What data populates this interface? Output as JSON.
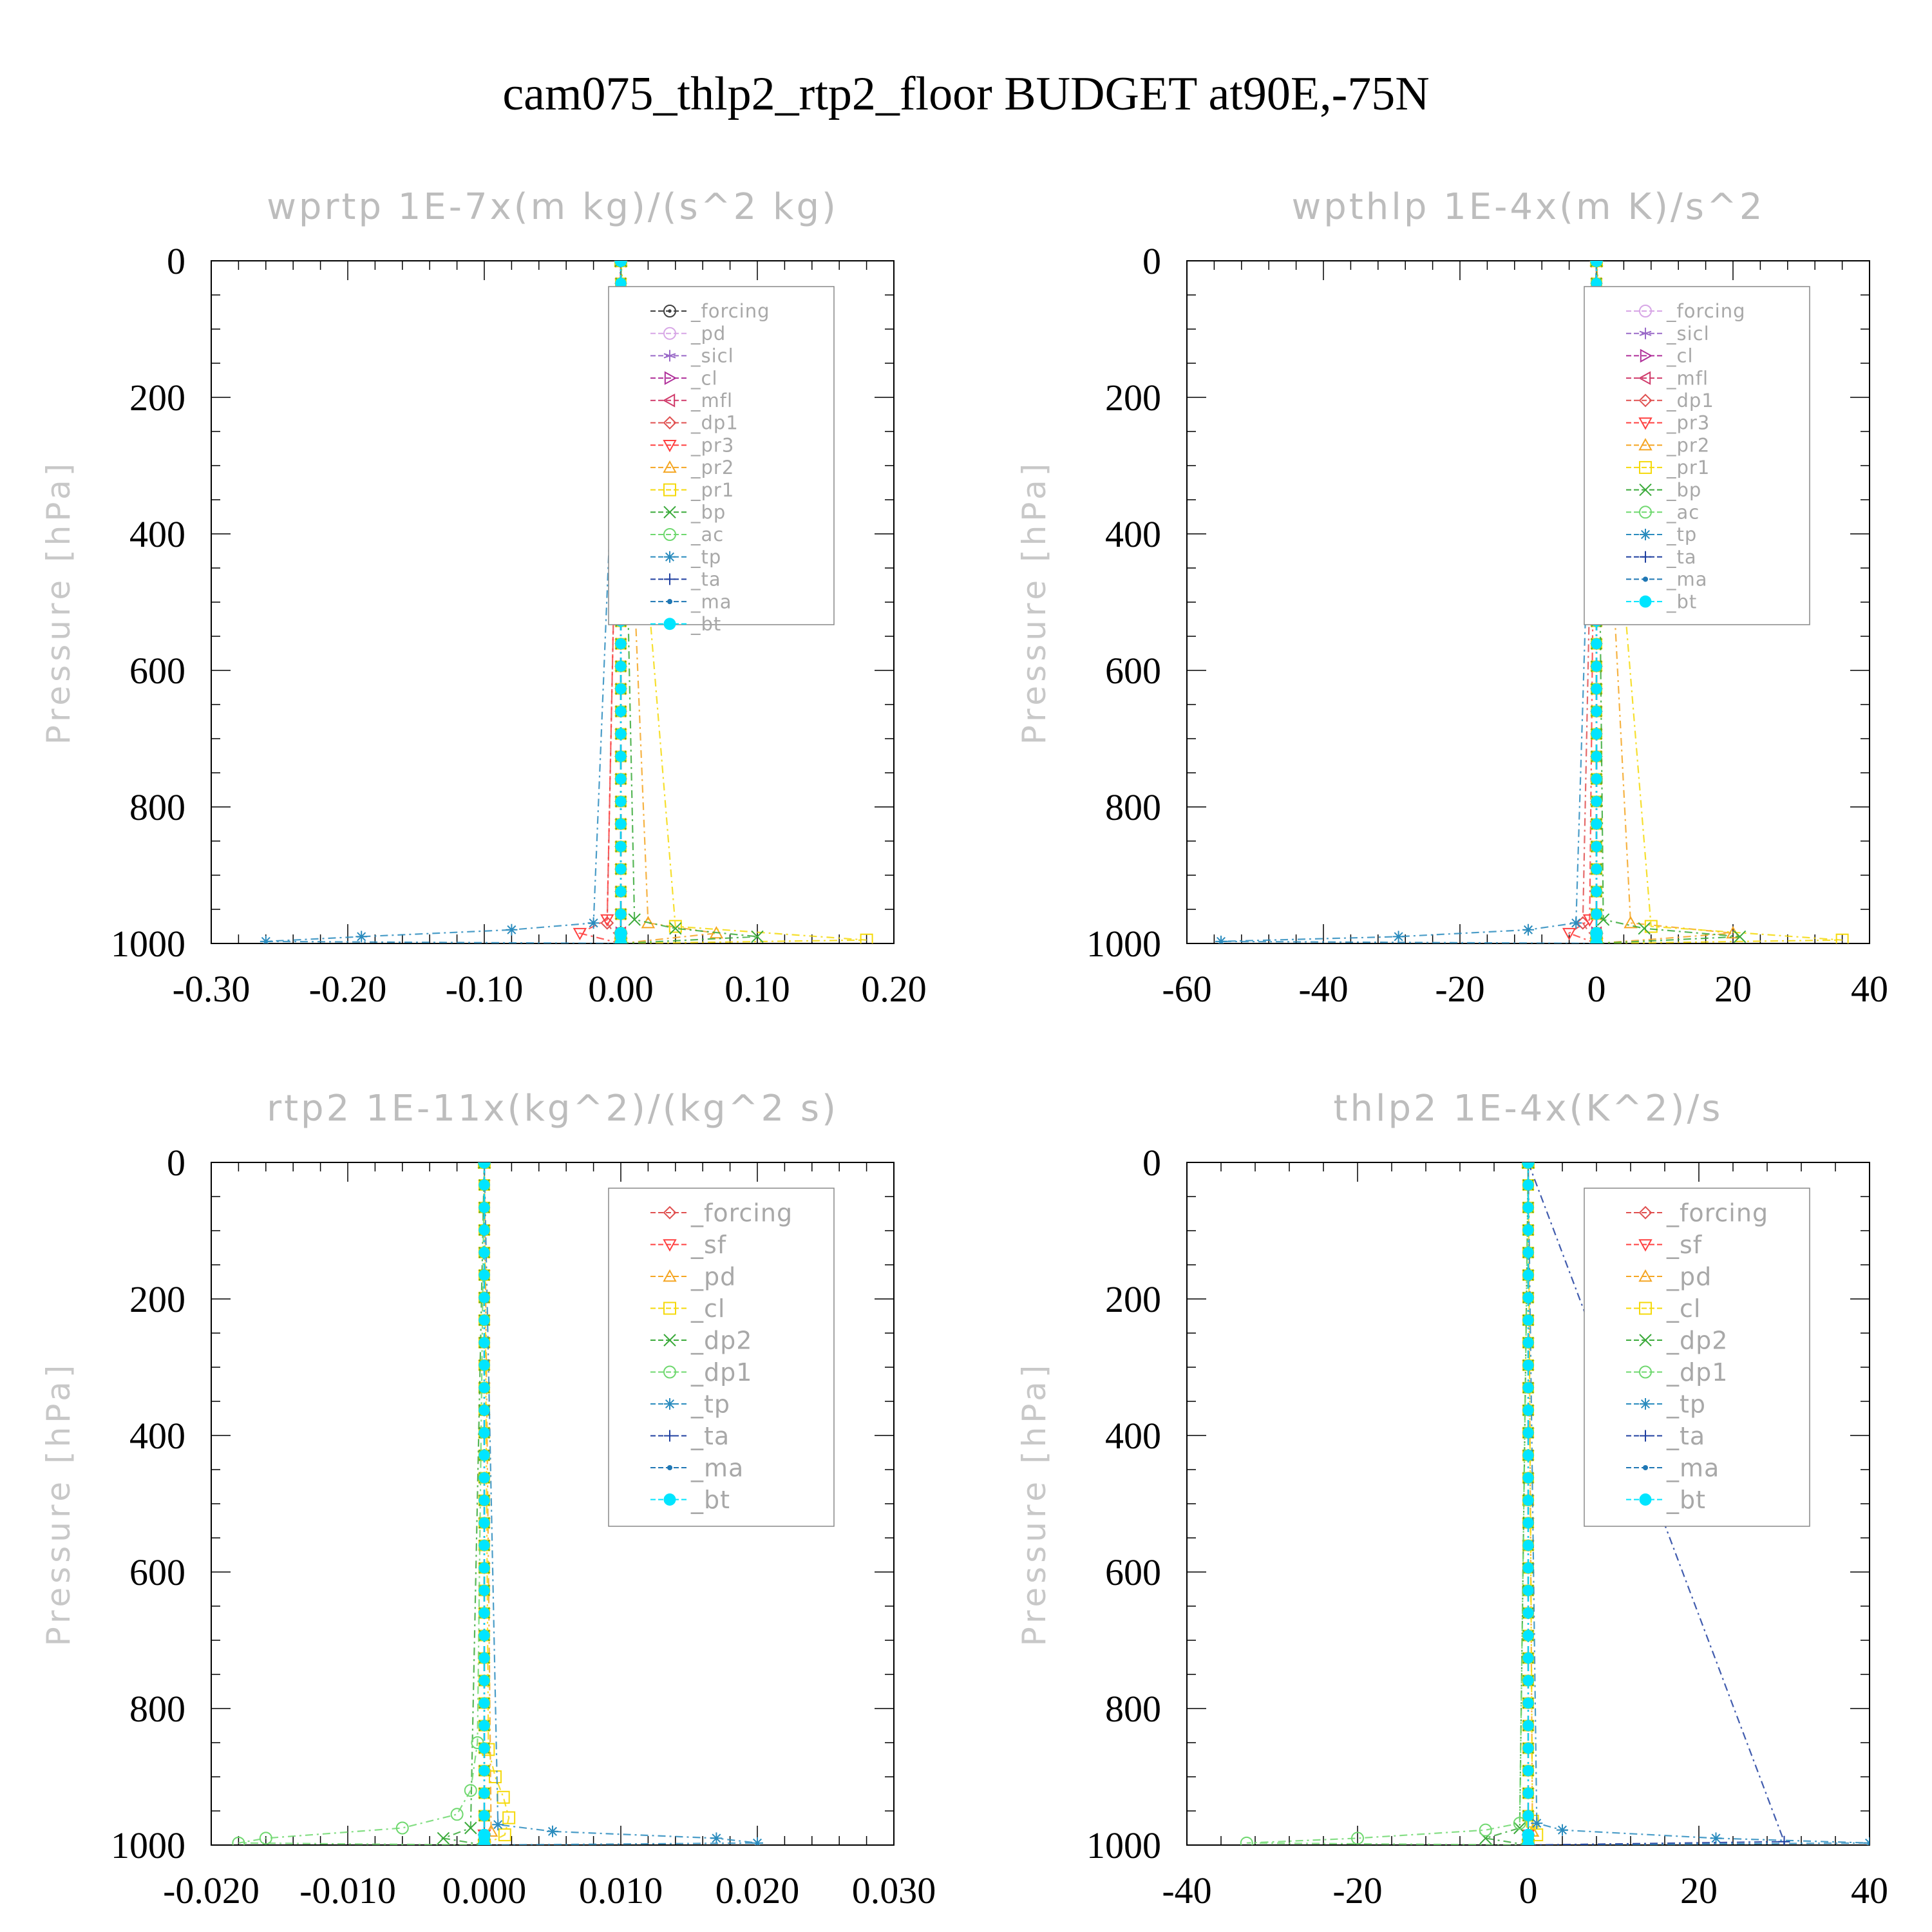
{
  "figure": {
    "title": "cam075_thlp2_rtp2_floor  BUDGET at90E,-75N"
  },
  "chart_data": [
    {
      "type": "line",
      "title": "wprtp  1E-7x(m kg)/(s^2 kg)",
      "ylabel": "Pressure [hPa]",
      "xlim": [
        -0.3,
        0.2
      ],
      "ylim": [
        1000,
        0
      ],
      "y_reversed": true,
      "xticks": [
        "-0.30",
        "-0.20",
        "-0.10",
        "0.00",
        "0.10",
        "0.20"
      ],
      "yticks": [
        "0",
        "200",
        "400",
        "600",
        "800",
        "1000"
      ],
      "legend_position": "top-right",
      "series": [
        {
          "name": "_forcing",
          "color": "#404040",
          "marker": "circle-dot",
          "x": [
            0,
            0,
            0
          ],
          "y": [
            1000,
            985,
            0
          ]
        },
        {
          "name": "_pd",
          "color": "#d7a6e6",
          "marker": "circle",
          "x": [
            0,
            0,
            0
          ],
          "y": [
            1000,
            985,
            0
          ]
        },
        {
          "name": "_sicl",
          "color": "#9a6ac8",
          "marker": "star",
          "x": [
            0,
            0,
            0
          ],
          "y": [
            1000,
            985,
            0
          ]
        },
        {
          "name": "_cl",
          "color": "#b0309a",
          "marker": "triangle-right",
          "x": [
            0,
            0,
            0
          ],
          "y": [
            1000,
            985,
            0
          ]
        },
        {
          "name": "_mfl",
          "color": "#d03a6a",
          "marker": "triangle-left",
          "x": [
            0,
            0,
            0
          ],
          "y": [
            1000,
            985,
            0
          ]
        },
        {
          "name": "_dp1",
          "color": "#e05050",
          "marker": "diamond",
          "x": [
            0,
            -0.01,
            0
          ],
          "y": [
            1000,
            970,
            0
          ]
        },
        {
          "name": "_pr3",
          "color": "#ff4040",
          "marker": "triangle-down",
          "x": [
            0,
            -0.03,
            -0.01,
            0
          ],
          "y": [
            1000,
            985,
            965,
            0
          ]
        },
        {
          "name": "_pr2",
          "color": "#f5a623",
          "marker": "triangle-up",
          "x": [
            0,
            0.07,
            0.02,
            0
          ],
          "y": [
            1000,
            985,
            970,
            0
          ]
        },
        {
          "name": "_pr1",
          "color": "#f5d90a",
          "marker": "square",
          "x": [
            0,
            0.18,
            0.04,
            0
          ],
          "y": [
            1000,
            995,
            975,
            0
          ]
        },
        {
          "name": "_bp",
          "color": "#3aaa3a",
          "marker": "x",
          "x": [
            0,
            0.1,
            0.04,
            0.01,
            0
          ],
          "y": [
            1000,
            990,
            978,
            965,
            0
          ]
        },
        {
          "name": "_ac",
          "color": "#6fd86f",
          "marker": "circle",
          "x": [
            0,
            0,
            0
          ],
          "y": [
            1000,
            985,
            0
          ]
        },
        {
          "name": "_tp",
          "color": "#2b8cbe",
          "marker": "asterisk",
          "x": [
            0,
            -0.26,
            -0.19,
            -0.08,
            -0.02,
            0
          ],
          "y": [
            1000,
            997,
            990,
            980,
            970,
            0
          ]
        },
        {
          "name": "_ta",
          "color": "#2040a0",
          "marker": "plus",
          "x": [
            0,
            0,
            0
          ],
          "y": [
            1000,
            985,
            0
          ]
        },
        {
          "name": "_ma",
          "color": "#1f77b4",
          "marker": "dot",
          "x": [
            0,
            0,
            0
          ],
          "y": [
            1000,
            985,
            0
          ]
        },
        {
          "name": "_bt",
          "color": "#00e5ff",
          "marker": "filled-circle",
          "x": [
            0,
            0,
            0
          ],
          "y": [
            1000,
            985,
            0
          ]
        }
      ]
    },
    {
      "type": "line",
      "title": "wpthlp  1E-4x(m K)/s^2",
      "ylabel": "Pressure [hPa]",
      "xlim": [
        -60,
        40
      ],
      "ylim": [
        1000,
        0
      ],
      "y_reversed": true,
      "xticks": [
        "-60",
        "-40",
        "-20",
        "0",
        "20",
        "40"
      ],
      "yticks": [
        "0",
        "200",
        "400",
        "600",
        "800",
        "1000"
      ],
      "legend_position": "top-right",
      "series": [
        {
          "name": "_forcing",
          "color": "#d7a6e6",
          "marker": "circle",
          "x": [
            0,
            0,
            0
          ],
          "y": [
            1000,
            985,
            0
          ]
        },
        {
          "name": "_sicl",
          "color": "#9a6ac8",
          "marker": "star",
          "x": [
            0,
            0,
            0
          ],
          "y": [
            1000,
            985,
            0
          ]
        },
        {
          "name": "_cl",
          "color": "#b0309a",
          "marker": "triangle-right",
          "x": [
            0,
            0,
            0
          ],
          "y": [
            1000,
            985,
            0
          ]
        },
        {
          "name": "_mfl",
          "color": "#d03a6a",
          "marker": "triangle-left",
          "x": [
            0,
            0,
            0
          ],
          "y": [
            1000,
            985,
            0
          ]
        },
        {
          "name": "_dp1",
          "color": "#e05050",
          "marker": "diamond",
          "x": [
            0,
            -2,
            0
          ],
          "y": [
            1000,
            970,
            0
          ]
        },
        {
          "name": "_pr3",
          "color": "#ff4040",
          "marker": "triangle-down",
          "x": [
            0,
            -4,
            -1,
            0
          ],
          "y": [
            1000,
            985,
            965,
            0
          ]
        },
        {
          "name": "_pr2",
          "color": "#f5a623",
          "marker": "triangle-up",
          "x": [
            0,
            20,
            5,
            0
          ],
          "y": [
            1000,
            985,
            970,
            0
          ]
        },
        {
          "name": "_pr1",
          "color": "#f5d90a",
          "marker": "square",
          "x": [
            0,
            36,
            8,
            0
          ],
          "y": [
            1000,
            995,
            975,
            0
          ]
        },
        {
          "name": "_bp",
          "color": "#3aaa3a",
          "marker": "x",
          "x": [
            0,
            21,
            7,
            1,
            0
          ],
          "y": [
            1000,
            990,
            978,
            965,
            0
          ]
        },
        {
          "name": "_ac",
          "color": "#6fd86f",
          "marker": "circle",
          "x": [
            0,
            0,
            0
          ],
          "y": [
            1000,
            985,
            0
          ]
        },
        {
          "name": "_tp",
          "color": "#2b8cbe",
          "marker": "asterisk",
          "x": [
            0,
            -55,
            -29,
            -10,
            -3,
            0
          ],
          "y": [
            1000,
            997,
            990,
            980,
            970,
            0
          ]
        },
        {
          "name": "_ta",
          "color": "#2040a0",
          "marker": "plus",
          "x": [
            0,
            0,
            0
          ],
          "y": [
            1000,
            985,
            0
          ]
        },
        {
          "name": "_ma",
          "color": "#1f77b4",
          "marker": "dot",
          "x": [
            0,
            0,
            0
          ],
          "y": [
            1000,
            985,
            0
          ]
        },
        {
          "name": "_bt",
          "color": "#00e5ff",
          "marker": "filled-circle",
          "x": [
            0,
            0,
            0
          ],
          "y": [
            1000,
            985,
            0
          ]
        }
      ]
    },
    {
      "type": "line",
      "title": "rtp2  1E-11x(kg^2)/(kg^2 s)",
      "ylabel": "Pressure [hPa]",
      "xlim": [
        -0.02,
        0.03
      ],
      "ylim": [
        1000,
        0
      ],
      "y_reversed": true,
      "xticks": [
        "-0.020",
        "-0.010",
        "0.000",
        "0.010",
        "0.020",
        "0.030"
      ],
      "yticks": [
        "0",
        "200",
        "400",
        "600",
        "800",
        "1000"
      ],
      "legend_position": "top-right",
      "series": [
        {
          "name": "_forcing",
          "color": "#e05050",
          "marker": "diamond",
          "x": [
            0,
            0,
            0
          ],
          "y": [
            1000,
            985,
            0
          ]
        },
        {
          "name": "_sf",
          "color": "#ff4040",
          "marker": "triangle-down",
          "x": [
            0,
            0,
            0
          ],
          "y": [
            1000,
            985,
            0
          ]
        },
        {
          "name": "_pd",
          "color": "#f5a623",
          "marker": "triangle-up",
          "x": [
            0,
            0.0005,
            0
          ],
          "y": [
            1000,
            980,
            0
          ]
        },
        {
          "name": "_cl",
          "color": "#f5d90a",
          "marker": "square",
          "x": [
            0,
            0.0015,
            0.0018,
            0.0014,
            0.0008,
            0.0003,
            0
          ],
          "y": [
            1000,
            985,
            960,
            930,
            900,
            860,
            0
          ]
        },
        {
          "name": "_dp2",
          "color": "#3aaa3a",
          "marker": "x",
          "x": [
            0,
            -0.003,
            -0.001,
            0
          ],
          "y": [
            1000,
            990,
            975,
            0
          ]
        },
        {
          "name": "_dp1",
          "color": "#6fd86f",
          "marker": "circle",
          "x": [
            0,
            -0.018,
            -0.016,
            -0.006,
            -0.002,
            -0.001,
            -0.0005,
            0
          ],
          "y": [
            1000,
            997,
            990,
            975,
            955,
            920,
            850,
            0
          ]
        },
        {
          "name": "_tp",
          "color": "#2b8cbe",
          "marker": "asterisk",
          "x": [
            0,
            0.02,
            0.017,
            0.005,
            0.001,
            0
          ],
          "y": [
            1000,
            997,
            990,
            980,
            970,
            0
          ]
        },
        {
          "name": "_ta",
          "color": "#2040a0",
          "marker": "plus",
          "x": [
            0,
            0,
            0
          ],
          "y": [
            1000,
            985,
            0
          ]
        },
        {
          "name": "_ma",
          "color": "#1f77b4",
          "marker": "dot",
          "x": [
            0,
            0,
            0
          ],
          "y": [
            1000,
            985,
            0
          ]
        },
        {
          "name": "_bt",
          "color": "#00e5ff",
          "marker": "filled-circle",
          "x": [
            0,
            0,
            0
          ],
          "y": [
            1000,
            985,
            0
          ]
        }
      ]
    },
    {
      "type": "line",
      "title": "thlp2  1E-4x(K^2)/s",
      "ylabel": "Pressure [hPa]",
      "xlim": [
        -40,
        40
      ],
      "ylim": [
        1000,
        0
      ],
      "y_reversed": true,
      "xticks": [
        "-40",
        "-20",
        "0",
        "20",
        "40"
      ],
      "yticks": [
        "0",
        "200",
        "400",
        "600",
        "800",
        "1000"
      ],
      "legend_position": "top-right",
      "series": [
        {
          "name": "_forcing",
          "color": "#e05050",
          "marker": "diamond",
          "x": [
            0,
            0,
            0
          ],
          "y": [
            1000,
            985,
            0
          ]
        },
        {
          "name": "_sf",
          "color": "#ff4040",
          "marker": "triangle-down",
          "x": [
            0,
            0,
            0
          ],
          "y": [
            1000,
            985,
            0
          ]
        },
        {
          "name": "_pd",
          "color": "#f5a623",
          "marker": "triangle-up",
          "x": [
            0,
            0.5,
            0
          ],
          "y": [
            1000,
            980,
            0
          ]
        },
        {
          "name": "_cl",
          "color": "#f5d90a",
          "marker": "square",
          "x": [
            0,
            1,
            0.5,
            0
          ],
          "y": [
            1000,
            985,
            965,
            0
          ]
        },
        {
          "name": "_dp2",
          "color": "#3aaa3a",
          "marker": "x",
          "x": [
            0,
            -5,
            -1,
            0
          ],
          "y": [
            1000,
            990,
            975,
            0
          ]
        },
        {
          "name": "_dp1",
          "color": "#6fd86f",
          "marker": "circle",
          "x": [
            0,
            -33,
            -20,
            -5,
            -1,
            0
          ],
          "y": [
            1000,
            997,
            990,
            978,
            968,
            0
          ]
        },
        {
          "name": "_tp",
          "color": "#2b8cbe",
          "marker": "asterisk",
          "x": [
            0,
            40,
            22,
            4,
            1,
            0
          ],
          "y": [
            1000,
            997,
            990,
            978,
            968,
            0
          ]
        },
        {
          "name": "_ta",
          "color": "#2040a0",
          "marker": "plus",
          "x": [
            0,
            30,
            0
          ],
          "y": [
            1000,
            995,
            0
          ]
        },
        {
          "name": "_ma",
          "color": "#1f77b4",
          "marker": "dot",
          "x": [
            0,
            0,
            0
          ],
          "y": [
            1000,
            985,
            0
          ]
        },
        {
          "name": "_bt",
          "color": "#00e5ff",
          "marker": "filled-circle",
          "x": [
            0,
            0,
            0
          ],
          "y": [
            1000,
            985,
            0
          ]
        }
      ]
    }
  ]
}
